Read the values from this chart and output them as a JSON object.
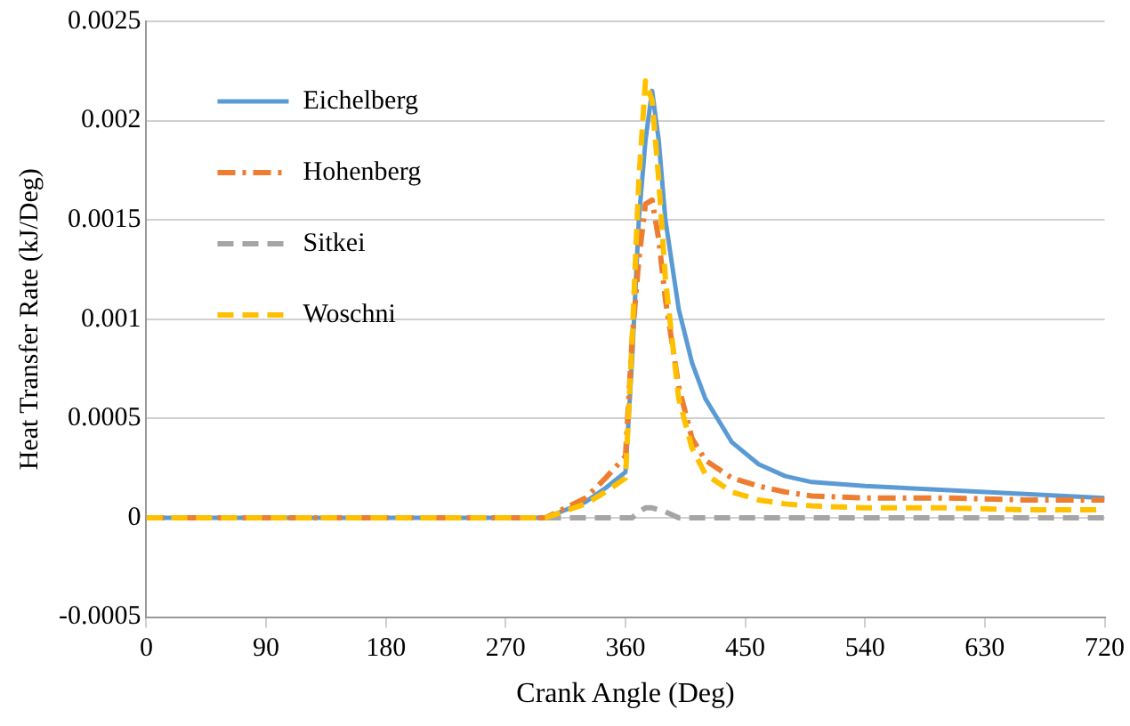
{
  "chart_data": {
    "type": "line",
    "xlabel": "Crank Angle (Deg)",
    "ylabel": "Heat Transfer Rate (kJ/Deg)",
    "x": [
      0,
      90,
      180,
      270,
      300,
      330,
      345,
      360,
      365,
      370,
      375,
      380,
      385,
      390,
      400,
      410,
      420,
      440,
      460,
      480,
      500,
      540,
      600,
      660,
      720
    ],
    "series": [
      {
        "name": "Eichelberg",
        "color": "#5b9bd5",
        "line_style": "solid",
        "values": [
          0,
          0,
          0,
          0,
          0,
          8e-05,
          0.00015,
          0.00023,
          0.0008,
          0.0015,
          0.0019,
          0.00215,
          0.0019,
          0.0015,
          0.00105,
          0.00078,
          0.0006,
          0.00038,
          0.00027,
          0.00021,
          0.00018,
          0.00016,
          0.00014,
          0.00012,
          0.0001
        ]
      },
      {
        "name": "Hohenberg",
        "color": "#ed7d31",
        "line_style": "dashdot",
        "values": [
          0,
          0,
          0,
          0,
          0,
          0.0001,
          0.0002,
          0.00031,
          0.0009,
          0.0013,
          0.00158,
          0.0016,
          0.0014,
          0.0011,
          0.00066,
          0.0004,
          0.00029,
          0.0002,
          0.00016,
          0.00013,
          0.00011,
          0.0001,
          0.0001,
          9e-05,
          9e-05
        ]
      },
      {
        "name": "Sitkei",
        "color": "#a5a5a5",
        "line_style": "dashed",
        "values": [
          0,
          0,
          0,
          0,
          0,
          0,
          0,
          0,
          0,
          3e-05,
          5e-05,
          5e-05,
          4e-05,
          3e-05,
          0,
          0,
          0,
          0,
          0,
          0,
          0,
          0,
          0,
          0,
          0
        ]
      },
      {
        "name": "Woschni",
        "color": "#ffc000",
        "line_style": "dashed",
        "values": [
          0,
          0,
          0,
          0,
          0,
          7e-05,
          0.00013,
          0.0002,
          0.0009,
          0.0017,
          0.0022,
          0.0021,
          0.0017,
          0.0012,
          0.0006,
          0.00035,
          0.00022,
          0.00013,
          9e-05,
          7e-05,
          6e-05,
          5e-05,
          5e-05,
          4e-05,
          4e-05
        ]
      }
    ],
    "xlim": [
      0,
      720
    ],
    "xticks": [
      0,
      90,
      180,
      270,
      360,
      450,
      540,
      630,
      720
    ],
    "ylim": [
      -0.0005,
      0.0025
    ],
    "yticks": [
      -0.0005,
      0,
      0.0005,
      0.001,
      0.0015,
      0.002,
      0.0025
    ],
    "grid": "y",
    "legend": "top left",
    "marker": "none"
  }
}
